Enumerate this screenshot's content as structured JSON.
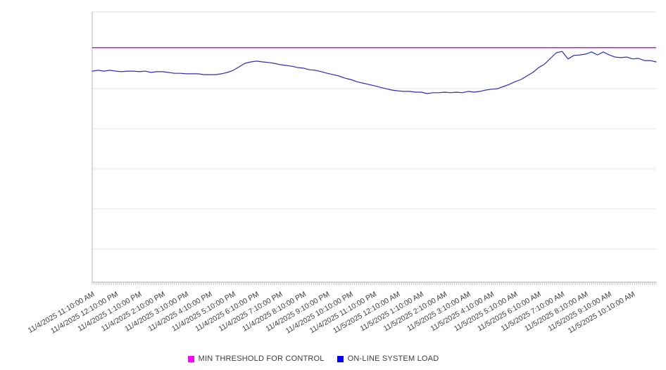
{
  "chart_data": {
    "type": "line",
    "title": "",
    "xlabel": "",
    "ylabel": "",
    "y_axis_tick_labels": [],
    "ylim": [
      0,
      100
    ],
    "y_unit": "relative scale (no y-axis labels shown)",
    "grid": true,
    "legend_position": "bottom-center",
    "x_labels": [
      "11/4/2025 11:10:00 AM",
      "11/4/2025 12:10:00 PM",
      "11/4/2025 1:10:00 PM",
      "11/4/2025 2:10:00 PM",
      "11/4/2025 3:10:00 PM",
      "11/4/2025 4:10:00 PM",
      "11/4/2025 5:10:00 PM",
      "11/4/2025 6:10:00 PM",
      "11/4/2025 7:10:00 PM",
      "11/4/2025 8:10:00 PM",
      "11/4/2025 9:10:00 PM",
      "11/4/2025 10:10:00 PM",
      "11/4/2025 11:10:00 PM",
      "11/5/2025 12:10:00 AM",
      "11/5/2025 1:10:00 AM",
      "11/5/2025 2:10:00 AM",
      "11/5/2025 3:10:00 AM",
      "11/5/2025 4:10:00 AM",
      "11/5/2025 5:10:00 AM",
      "11/5/2025 6:10:00 AM",
      "11/5/2025 7:10:00 AM",
      "11/5/2025 8:10:00 AM",
      "11/5/2025 9:10:00 AM",
      "11/5/2025 10:10:00 AM"
    ],
    "x_minor_tick_count": 288,
    "series": [
      {
        "name": "MIN THRESHOLD FOR CONTROL",
        "type": "threshold-line",
        "value": 86.8,
        "line_color": "#cc14cc",
        "marker_color": "#ff00ff"
      },
      {
        "name": "ON-LINE SYSTEM LOAD",
        "type": "line",
        "line_color": "#2b2bc8",
        "marker_color": "#0000ff",
        "values": [
          78.1,
          78.4,
          78.1,
          78.4,
          78.1,
          77.9,
          78.1,
          78.1,
          77.9,
          78.1,
          77.6,
          77.9,
          77.9,
          77.6,
          77.3,
          77.3,
          77.1,
          77.1,
          77.1,
          76.8,
          76.8,
          76.8,
          77.1,
          77.6,
          78.4,
          79.7,
          81.0,
          81.5,
          81.8,
          81.5,
          81.3,
          81.0,
          80.5,
          80.2,
          79.9,
          79.4,
          79.2,
          78.6,
          78.4,
          77.9,
          77.3,
          76.8,
          76.3,
          75.5,
          75.0,
          74.2,
          73.7,
          73.2,
          72.7,
          72.1,
          71.6,
          71.1,
          70.8,
          70.6,
          70.6,
          70.3,
          70.3,
          69.8,
          70.1,
          70.1,
          70.3,
          70.1,
          70.3,
          70.1,
          70.6,
          70.3,
          70.6,
          71.1,
          71.4,
          71.6,
          72.4,
          73.2,
          74.2,
          75.0,
          76.3,
          77.6,
          79.4,
          80.7,
          82.8,
          84.9,
          85.4,
          82.6,
          83.9,
          84.1,
          84.4,
          85.2,
          84.1,
          85.2,
          84.1,
          83.3,
          83.1,
          83.3,
          82.6,
          82.8,
          82.0,
          82.0,
          81.5
        ]
      }
    ],
    "colors": {
      "gridline": "#e6e6e6",
      "plot_top_border": "#dcdcdc",
      "axis": "#b3b3b3",
      "tick_label_text": "#3c3c3c"
    }
  }
}
